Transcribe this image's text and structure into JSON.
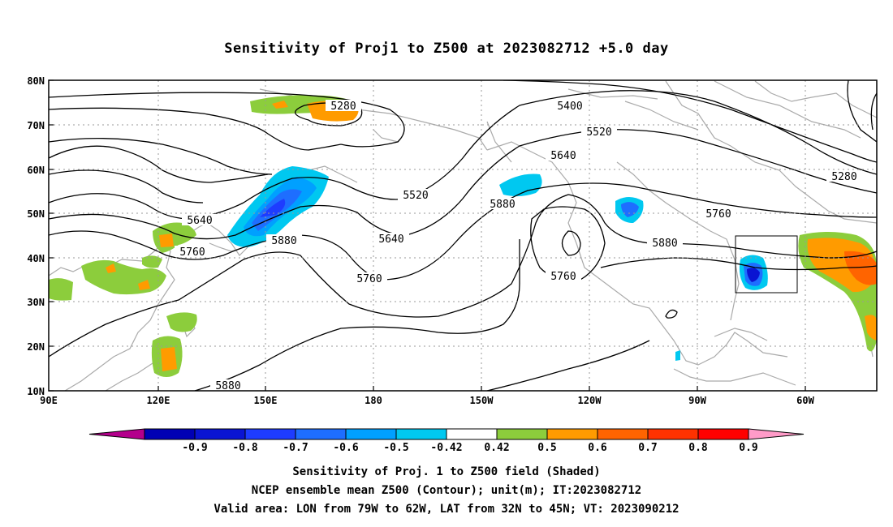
{
  "title": "Sensitivity of Proj1 to Z500 at 2023082712 +5.0 day",
  "lat_labels": [
    "80N",
    "70N",
    "60N",
    "50N",
    "40N",
    "30N",
    "20N",
    "10N"
  ],
  "lon_labels": [
    "90E",
    "120E",
    "150E",
    "180",
    "150W",
    "120W",
    "90W",
    "60W"
  ],
  "contour_labels": [
    "5280",
    "5400",
    "5520",
    "5640",
    "5280",
    "5520",
    "5640",
    "5880",
    "5760",
    "5640",
    "5760",
    "5880",
    "5760",
    "5880",
    "5760",
    "5880"
  ],
  "colorbar": {
    "levels": [
      "-0.9",
      "-0.8",
      "-0.7",
      "-0.6",
      "-0.5",
      "-0.42",
      "0.42",
      "0.5",
      "0.6",
      "0.7",
      "0.8",
      "0.9"
    ],
    "colors": [
      "#b4008c",
      "#0000b4",
      "#0a14d2",
      "#1e3cff",
      "#1e6eff",
      "#00a0ff",
      "#00c8f0",
      "#ffffff",
      "#8ccd3c",
      "#ff9b00",
      "#ff6400",
      "#ff3200",
      "#ff0000",
      "#ff9bc8"
    ]
  },
  "captions": [
    "Sensitivity of Proj. 1 to Z500 field (Shaded)",
    "NCEP ensemble mean Z500 (Contour); unit(m); IT:2023082712",
    "Valid area: LON from 79W to 62W, LAT from 32N to 45N; VT: 2023090212"
  ]
}
